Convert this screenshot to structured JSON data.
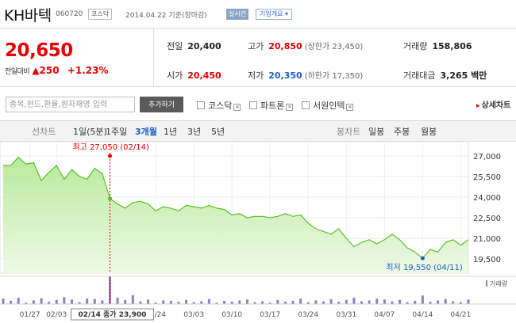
{
  "header": {
    "stock_name": "KH바텍",
    "stock_code": "060720",
    "market_badge": "코스닥",
    "date_label": "2014.04.22 기준(장마감)",
    "realtime_badge": "실시간",
    "company_info_label": "기업개요 ▾"
  },
  "price": {
    "current": "20,650",
    "change_label": "전일대비",
    "change_arrow": "▲",
    "change_value": "250",
    "change_percent": "+1.23%"
  },
  "quote": {
    "prev_close_label": "전일",
    "prev_close": "20,400",
    "high_label": "고가",
    "high": "20,850",
    "upper_limit": "(상한가 23,450)",
    "volume_label": "거래량",
    "volume": "158,806",
    "open_label": "시가",
    "open": "20,450",
    "low_label": "저가",
    "low": "20,350",
    "lower_limit": "(하한가 17,350)",
    "amount_label": "거래대금",
    "amount": "3,265 백만"
  },
  "search": {
    "placeholder": "종목,펀드,환율,원자재명 입력",
    "add_button": "추가하기",
    "compare_items": [
      "코스닥",
      "파트론",
      "서원인텍"
    ],
    "detail_link": "상세차트",
    "detail_icon": "▸"
  },
  "tabs": {
    "line_chart_label": "선차트",
    "periods": [
      "1일(5분)",
      "1주일",
      "3개월",
      "1년",
      "3년",
      "5년"
    ],
    "active_period": "3개월",
    "candle_chart_label": "봉차트",
    "candles": [
      "일봉",
      "주봉",
      "월봉"
    ]
  },
  "chart_data": {
    "type": "area",
    "y_ticks": [
      "27,000",
      "25,500",
      "24,000",
      "22,500",
      "21,000",
      "19,500"
    ],
    "y_tick_values": [
      27000,
      25500,
      24000,
      22500,
      21000,
      19500
    ],
    "ylim": [
      18700,
      27800
    ],
    "x_labels": [
      "01/27",
      "02/03",
      "02/14",
      "02/24",
      "03/03",
      "03/10",
      "03/17",
      "03/24",
      "03/31",
      "04/07",
      "04/14",
      "04/21"
    ],
    "highlight_label": "02/14 종가 23,900",
    "high_annotation": "최고 27,050 (02/14)",
    "low_annotation": "최저 19,550 (04/11)",
    "volume_label": "거래량",
    "series": [
      {
        "values": [
          26300,
          26300,
          26900,
          26400,
          26500,
          25200,
          25800,
          26300,
          25300,
          26000,
          25500,
          25300,
          26100,
          25700,
          23900,
          23500,
          23200,
          23600,
          23700,
          23500,
          23000,
          23300,
          23200,
          23000,
          23400,
          23300,
          23200,
          23400,
          23200,
          23100,
          22700,
          22800,
          22500,
          22600,
          22600,
          22500,
          22600,
          22800,
          22600,
          22700,
          22100,
          21700,
          21500,
          21300,
          21700,
          21000,
          20400,
          20700,
          20900,
          20600,
          20900,
          21300,
          20900,
          20300,
          20000,
          19550,
          20200,
          20000,
          20700,
          20900,
          20500,
          20900
        ]
      }
    ],
    "volume": [
      12,
      7,
      14,
      3,
      8,
      13,
      5,
      9,
      15,
      10,
      4,
      12,
      11,
      8,
      60,
      14,
      9,
      20,
      6,
      10,
      3,
      8,
      7,
      5,
      9,
      4,
      6,
      11,
      3,
      7,
      5,
      8,
      10,
      4,
      6,
      3,
      9,
      5,
      7,
      12,
      4,
      8,
      6,
      11,
      5,
      9,
      14,
      6,
      8,
      12,
      10,
      6,
      9,
      4,
      7,
      19,
      5,
      8,
      11,
      6,
      4,
      10
    ]
  },
  "colors": {
    "up": "#e60000",
    "down": "#1a5fc4",
    "line": "#5cbf2a",
    "area_top": "#b8ea9a",
    "area_bottom": "#eef9e7",
    "volume_bar": "#8e7fc1"
  }
}
